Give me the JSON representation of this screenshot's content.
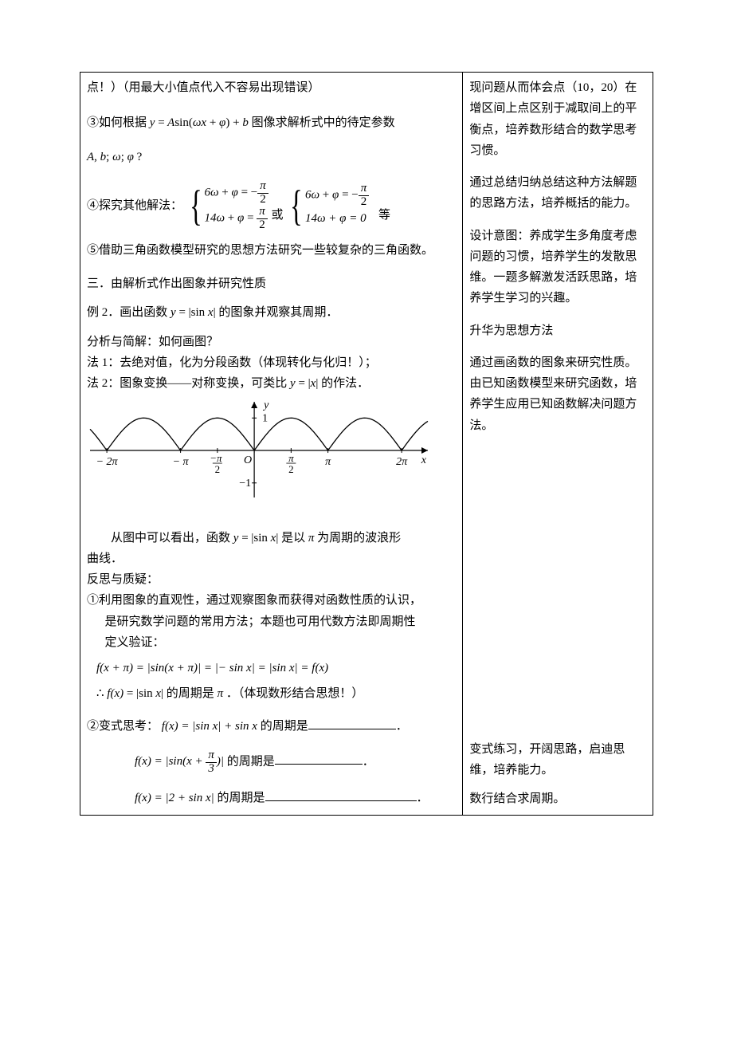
{
  "left": {
    "line1": "点！）（用最大小值点代入不容易出现错误）",
    "q3_pre": "③如何根据 ",
    "q3_formula": "y = A sin(ωx + φ) + b",
    "q3_post": " 图像求解析式中的待定参数",
    "q3_params": "A, b; ω; φ ?",
    "q4_pre": "④探究其他解法：",
    "sys1_r1a": "6ω + φ = −",
    "sys1_r1b": "π",
    "sys1_r1c": "2",
    "sys1_r2a": "14ω + φ = ",
    "sys1_r2b": "π",
    "sys1_r2c": "2",
    "or": "或",
    "sys2_r1a": "6ω + φ = −",
    "sys2_r1b": "π",
    "sys2_r1c": "2",
    "sys2_r2": "14ω + φ = 0",
    "q4_post": "等",
    "q5": "⑤借助三角函数模型研究的思想方法研究一些较复杂的三角函数。",
    "sec3": "三．由解析式作出图象并研究性质",
    "ex2_pre": "例 2．画出函数 ",
    "ex2_formula": "y = |sin x|",
    "ex2_post": " 的图象并观察其周期．",
    "analysis_q": "分析与简解：如何画图？",
    "m1": "法 1：去绝对值，化为分段函数（体现转化与化归！）；",
    "m2_pre": "法 2：图象变换——对称变换，可类比 ",
    "m2_formula": "y = |x|",
    "m2_post": " 的作法．",
    "graph": {
      "type": "line",
      "x_ticks_labels": [
        "−2π",
        "−π",
        "−π/2",
        "O",
        "π/2",
        "π",
        "2π"
      ],
      "x_tick_pos": [
        -6.2832,
        -3.1416,
        -1.5708,
        0,
        1.5708,
        3.1416,
        6.2832
      ],
      "y_ticks_labels": [
        "1",
        "−1"
      ],
      "y_tick_pos": [
        1,
        -1
      ],
      "y_axis_label": "y",
      "x_axis_label": "x",
      "x_range": [
        -7.0,
        7.4
      ],
      "y_range": [
        -1.3,
        1.4
      ],
      "samples": 240,
      "line_color": "#000000",
      "line_width": 1.3,
      "axis_color": "#000000",
      "background": "#ffffff",
      "tick_font_size": 14
    },
    "concl_pre": "从图中可以看出，函数 ",
    "concl_formula": "y = |sin x|",
    "concl_mid": " 是以 ",
    "concl_pi": "π",
    "concl_post": " 为周期的波浪形",
    "concl_line2": "曲线．",
    "reflect_title": "反思与质疑：",
    "reflect1a": "①利用图象的直观性，通过观察图象而获得对函数性质的认识，",
    "reflect1b": "是研究数学问题的常用方法；本题也可用代数方法即周期性",
    "reflect1c": "定义验证：",
    "proof": "f(x + π) = |sin(x + π)| = |− sin x| = |sin x| = f(x)",
    "therefore_pre": "∴ f(x) = |sin x|",
    "therefore_mid": " 的周期是 ",
    "therefore_pi": "π",
    "therefore_post": " ．（体现数形结合思想！）",
    "var_pre": "②变式思考：",
    "var1_formula": "f(x) = |sin x| + sin x",
    "var_q": "的周期是",
    "var2_formula_a": "f(x) = |sin(x + ",
    "var2_formula_b": "π",
    "var2_formula_c": "3",
    "var2_formula_d": ")|",
    "var3_formula": "f(x) = |2 + sin x|",
    "period_end": "．"
  },
  "right": {
    "r1": "现问题从而体会点（10，20）在增区间上点区别于减取间上的平衡点，培养数形结合的数学思考习惯。",
    "r2": "通过总结归纳总结这种方法解题的思路方法，培养概括的能力。",
    "r3": "设计意图：养成学生多角度考虑问题的习惯，培养学生的发散思维。一题多解激发活跃思路，培养学生学习的兴趣。",
    "r4": "升华为思想方法",
    "r5": "通过画函数的图象来研究性质。由已知函数模型来研究函数，培养学生应用已知函数解决问题方法。",
    "r6": "变式练习，开阔思路，启迪思维，培养能力。",
    "r7": "数行结合求周期。"
  }
}
